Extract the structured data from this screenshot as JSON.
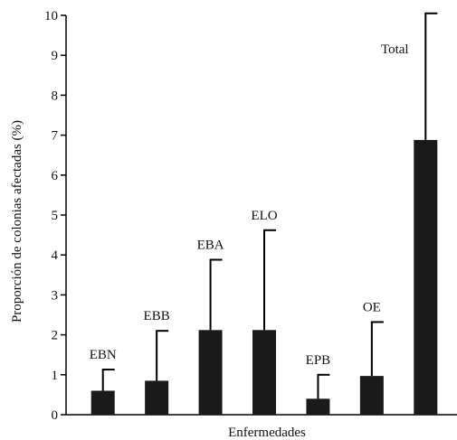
{
  "chart_data": {
    "type": "bar",
    "title": "",
    "xlabel": "Enfermedades",
    "ylabel": "Proporción de colonias afectadas (%)",
    "ylim": [
      0,
      10
    ],
    "yticks": [
      0,
      1,
      2,
      3,
      4,
      5,
      6,
      7,
      8,
      9,
      10
    ],
    "categories": [
      "EBN",
      "EBB",
      "EBA",
      "ELO",
      "EPB",
      "OE",
      "Total"
    ],
    "values": [
      0.6,
      0.85,
      2.12,
      2.12,
      0.4,
      0.97,
      6.88
    ],
    "error_upper": [
      1.13,
      2.1,
      3.88,
      4.62,
      1.0,
      2.32,
      10.05
    ],
    "bar_color": "#1a1a1a",
    "grid": false,
    "legend": "none"
  }
}
